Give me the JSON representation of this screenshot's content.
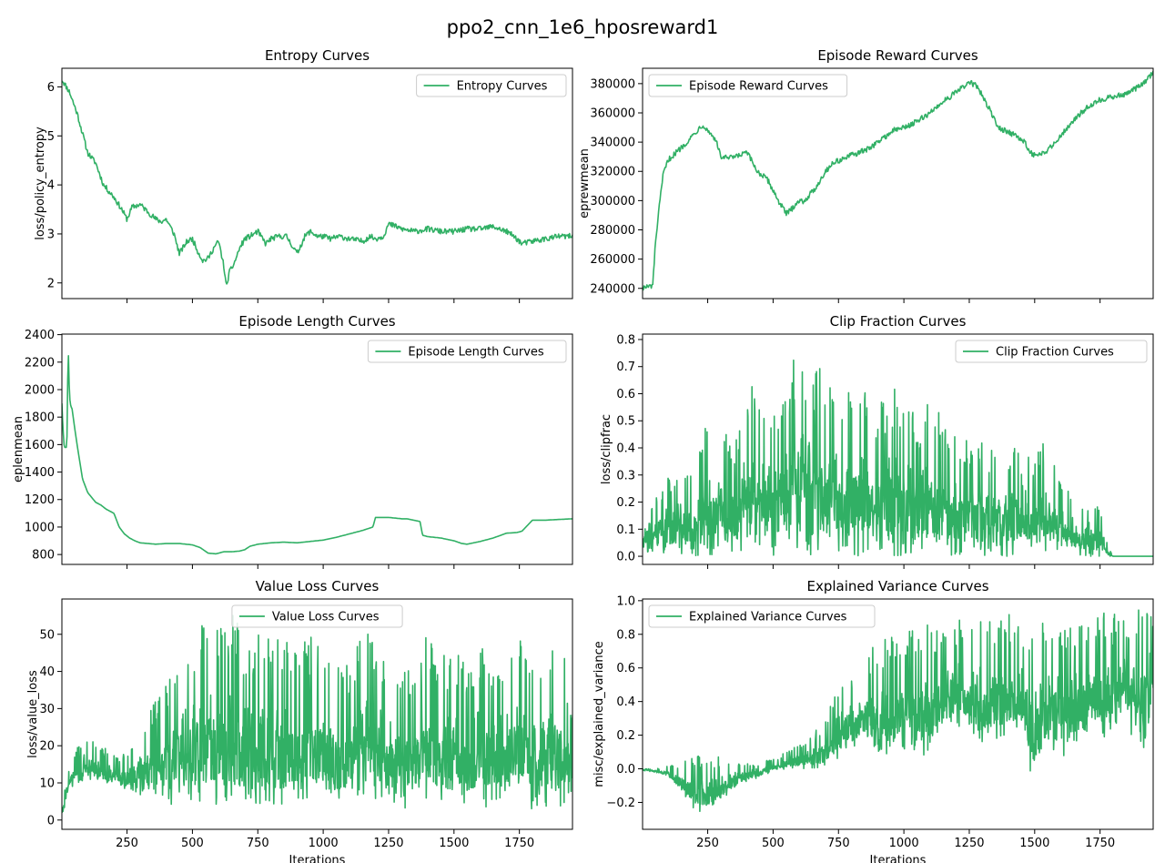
{
  "figure": {
    "title": "ppo2_cnn_1e6_hposreward1",
    "line_color": "#31b065"
  },
  "chart_data": [
    {
      "type": "line",
      "title": "Entropy Curves",
      "xlabel": "",
      "ylabel": "loss/policy_entropy",
      "xlim": [
        1,
        1953
      ],
      "ylim": [
        1.68,
        6.38
      ],
      "xticks": [
        250,
        500,
        750,
        1000,
        1250,
        1500,
        1750
      ],
      "xtick_labels": [],
      "yticks": [
        2,
        3,
        4,
        5,
        6
      ],
      "ytick_labels": [
        "2",
        "3",
        "4",
        "5",
        "6"
      ],
      "legend": "upper right",
      "series": [
        {
          "name": "Entropy Curves",
          "x": [
            1,
            30,
            60,
            100,
            130,
            160,
            200,
            230,
            250,
            270,
            300,
            330,
            360,
            380,
            400,
            430,
            450,
            480,
            500,
            520,
            540,
            560,
            580,
            600,
            620,
            630,
            640,
            660,
            680,
            700,
            720,
            750,
            780,
            800,
            830,
            860,
            900,
            930,
            950,
            980,
            1000,
            1030,
            1060,
            1100,
            1150,
            1180,
            1200,
            1230,
            1250,
            1280,
            1300,
            1350,
            1400,
            1450,
            1500,
            1550,
            1600,
            1650,
            1700,
            1730,
            1760,
            1800,
            1850,
            1900,
            1953
          ],
          "y": [
            6.15,
            5.9,
            5.45,
            4.65,
            4.45,
            4.0,
            3.75,
            3.5,
            3.3,
            3.55,
            3.6,
            3.45,
            3.3,
            3.25,
            3.3,
            3.0,
            2.6,
            2.85,
            2.9,
            2.65,
            2.45,
            2.5,
            2.7,
            2.85,
            2.35,
            1.9,
            2.2,
            2.4,
            2.7,
            2.9,
            2.95,
            3.05,
            2.8,
            2.9,
            2.95,
            2.95,
            2.6,
            2.95,
            3.05,
            2.95,
            2.95,
            2.9,
            2.95,
            2.9,
            2.85,
            2.95,
            2.9,
            2.95,
            3.2,
            3.15,
            3.1,
            3.05,
            3.1,
            3.05,
            3.05,
            3.1,
            3.1,
            3.15,
            3.05,
            2.95,
            2.8,
            2.85,
            2.9,
            2.95,
            2.95
          ]
        }
      ]
    },
    {
      "type": "line",
      "title": "Episode Reward Curves",
      "xlabel": "",
      "ylabel": "eprewmean",
      "xlim": [
        1,
        1953
      ],
      "ylim": [
        233000,
        390500
      ],
      "xticks": [
        250,
        500,
        750,
        1000,
        1250,
        1500,
        1750
      ],
      "xtick_labels": [],
      "yticks": [
        240000,
        260000,
        280000,
        300000,
        320000,
        340000,
        360000,
        380000
      ],
      "ytick_labels": [
        "240000",
        "260000",
        "280000",
        "300000",
        "320000",
        "340000",
        "360000",
        "380000"
      ],
      "legend": "upper left",
      "series": [
        {
          "name": "Episode Reward Curves",
          "x": [
            1,
            25,
            40,
            50,
            60,
            80,
            100,
            130,
            170,
            210,
            230,
            250,
            280,
            300,
            330,
            360,
            400,
            440,
            480,
            520,
            550,
            570,
            590,
            620,
            660,
            700,
            730,
            760,
            800,
            860,
            900,
            960,
            1000,
            1050,
            1100,
            1150,
            1200,
            1250,
            1280,
            1320,
            1360,
            1400,
            1430,
            1460,
            1490,
            1510,
            1530,
            1550,
            1580,
            1600,
            1650,
            1700,
            1750,
            1800,
            1850,
            1900,
            1953
          ],
          "y": [
            240500,
            241000,
            242000,
            270000,
            288000,
            318000,
            328000,
            333000,
            340000,
            348000,
            352000,
            348000,
            342000,
            330000,
            329000,
            330000,
            333000,
            320000,
            314000,
            300000,
            291000,
            294000,
            299000,
            300000,
            308000,
            320000,
            326000,
            328000,
            331000,
            335000,
            340000,
            348000,
            350000,
            354000,
            360000,
            368000,
            374000,
            381000,
            378000,
            365000,
            350000,
            347000,
            344000,
            340000,
            332000,
            330000,
            332000,
            335000,
            340000,
            345000,
            355000,
            364000,
            369000,
            371000,
            373000,
            378000,
            387000
          ]
        }
      ]
    },
    {
      "type": "line",
      "title": "Episode Length Curves",
      "xlabel": "",
      "ylabel": "eplenmean",
      "xlim": [
        1,
        1953
      ],
      "ylim": [
        728,
        2404
      ],
      "xticks": [
        250,
        500,
        750,
        1000,
        1250,
        1500,
        1750
      ],
      "xtick_labels": [],
      "yticks": [
        800,
        1000,
        1200,
        1400,
        1600,
        1800,
        2000,
        2200,
        2400
      ],
      "ytick_labels": [
        "800",
        "1000",
        "1200",
        "1400",
        "1600",
        "1800",
        "2000",
        "2200",
        "2400"
      ],
      "legend": "upper right",
      "series": [
        {
          "name": "Episode Length Curves",
          "x": [
            1,
            5,
            10,
            15,
            20,
            25,
            30,
            35,
            40,
            50,
            60,
            80,
            100,
            130,
            150,
            170,
            200,
            220,
            240,
            260,
            280,
            300,
            330,
            360,
            400,
            450,
            500,
            530,
            560,
            590,
            620,
            650,
            680,
            700,
            720,
            750,
            800,
            850,
            900,
            950,
            1000,
            1050,
            1100,
            1150,
            1190,
            1200,
            1250,
            1300,
            1320,
            1370,
            1380,
            1400,
            1450,
            1500,
            1530,
            1550,
            1600,
            1650,
            1700,
            1740,
            1760,
            1800,
            1850,
            1900,
            1953
          ],
          "y": [
            1900,
            1720,
            1580,
            1580,
            1580,
            2330,
            1950,
            1880,
            1860,
            1720,
            1590,
            1350,
            1250,
            1180,
            1160,
            1130,
            1100,
            1000,
            950,
            920,
            900,
            885,
            880,
            875,
            880,
            880,
            870,
            850,
            810,
            805,
            820,
            820,
            825,
            835,
            860,
            875,
            885,
            890,
            885,
            895,
            905,
            925,
            950,
            975,
            1000,
            1070,
            1070,
            1060,
            1060,
            1040,
            940,
            930,
            920,
            900,
            880,
            875,
            895,
            920,
            955,
            960,
            970,
            1050,
            1050,
            1055,
            1060
          ]
        }
      ]
    },
    {
      "type": "line",
      "title": "Clip Fraction Curves",
      "xlabel": "",
      "ylabel": "loss/clipfrac",
      "xlim": [
        1,
        1953
      ],
      "ylim": [
        -0.03,
        0.82
      ],
      "xticks": [
        250,
        500,
        750,
        1000,
        1250,
        1500,
        1750
      ],
      "xtick_labels": [],
      "yticks": [
        0.0,
        0.1,
        0.2,
        0.3,
        0.4,
        0.5,
        0.6,
        0.7,
        0.8
      ],
      "ytick_labels": [
        "0.0",
        "0.1",
        "0.2",
        "0.3",
        "0.4",
        "0.5",
        "0.6",
        "0.7",
        "0.8"
      ],
      "legend": "upper right",
      "series": [
        {
          "name": "Clip Fraction Curves",
          "envelope_x": [
            1,
            50,
            100,
            150,
            200,
            250,
            300,
            350,
            400,
            450,
            500,
            550,
            600,
            650,
            700,
            750,
            800,
            850,
            900,
            950,
            1000,
            1050,
            1100,
            1150,
            1200,
            1250,
            1300,
            1350,
            1400,
            1450,
            1500,
            1550,
            1600,
            1650,
            1700,
            1750,
            1780,
            1800,
            1850,
            1900,
            1953
          ],
          "envelope_high": [
            0.15,
            0.25,
            0.3,
            0.33,
            0.35,
            0.52,
            0.55,
            0.4,
            0.65,
            0.6,
            0.58,
            0.66,
            0.78,
            0.72,
            0.68,
            0.62,
            0.6,
            0.68,
            0.55,
            0.62,
            0.63,
            0.5,
            0.58,
            0.53,
            0.45,
            0.44,
            0.42,
            0.4,
            0.38,
            0.52,
            0.35,
            0.48,
            0.28,
            0.25,
            0.22,
            0.2,
            0.04,
            0.0,
            0.0,
            0.0,
            0.0
          ],
          "envelope_low": [
            0.01,
            0.01,
            0.0,
            0.0,
            0.0,
            0.0,
            0.0,
            0.0,
            0.0,
            0.0,
            0.0,
            0.0,
            0.0,
            0.0,
            0.0,
            0.0,
            0.0,
            0.0,
            0.0,
            0.0,
            0.0,
            0.0,
            0.0,
            0.0,
            0.0,
            0.0,
            0.0,
            0.0,
            0.0,
            0.0,
            0.0,
            0.0,
            0.0,
            0.0,
            0.0,
            0.0,
            0.0,
            0.0,
            0.0,
            0.0,
            0.0
          ]
        }
      ]
    },
    {
      "type": "line",
      "title": "Value Loss Curves",
      "xlabel": "Iterations",
      "ylabel": "loss/value_loss",
      "xlim": [
        1,
        1953
      ],
      "ylim": [
        -2.5,
        59.5
      ],
      "xticks": [
        250,
        500,
        750,
        1000,
        1250,
        1500,
        1750
      ],
      "xtick_labels": [
        "250",
        "500",
        "750",
        "1000",
        "1250",
        "1500",
        "1750"
      ],
      "yticks": [
        0,
        10,
        20,
        30,
        40,
        50
      ],
      "ytick_labels": [
        "0",
        "10",
        "20",
        "30",
        "40",
        "50"
      ],
      "legend": "upper center",
      "series": [
        {
          "name": "Value Loss Curves",
          "envelope_x": [
            1,
            30,
            60,
            100,
            150,
            200,
            250,
            300,
            350,
            400,
            450,
            500,
            550,
            600,
            650,
            700,
            750,
            800,
            850,
            900,
            950,
            1000,
            1050,
            1100,
            1150,
            1200,
            1250,
            1300,
            1350,
            1400,
            1450,
            1500,
            1550,
            1600,
            1650,
            1700,
            1750,
            1800,
            1850,
            1900,
            1953
          ],
          "envelope_high": [
            5,
            15,
            20,
            24,
            20,
            18,
            18,
            25,
            32,
            38,
            45,
            50,
            56,
            52,
            57,
            50,
            52,
            48,
            50,
            45,
            50,
            46,
            43,
            42,
            55,
            48,
            46,
            40,
            45,
            50,
            44,
            46,
            42,
            48,
            45,
            49,
            53,
            44,
            50,
            52,
            32
          ],
          "envelope_low": [
            1,
            8,
            10,
            10,
            10,
            9,
            8,
            6,
            5,
            4,
            4,
            3,
            3,
            3,
            3,
            3,
            3,
            3,
            3,
            3,
            3,
            3,
            3,
            3,
            3,
            4,
            3,
            3,
            3,
            3,
            3,
            3,
            3,
            3,
            3,
            3,
            3,
            3,
            3,
            3,
            3
          ]
        }
      ]
    },
    {
      "type": "line",
      "title": "Explained Variance Curves",
      "xlabel": "Iterations",
      "ylabel": "misc/explained_variance",
      "xlim": [
        1,
        1953
      ],
      "ylim": [
        -0.36,
        1.01
      ],
      "xticks": [
        250,
        500,
        750,
        1000,
        1250,
        1500,
        1750
      ],
      "xtick_labels": [
        "250",
        "500",
        "750",
        "1000",
        "1250",
        "1500",
        "1750"
      ],
      "yticks": [
        -0.2,
        0.0,
        0.2,
        0.4,
        0.6,
        0.8,
        1.0
      ],
      "ytick_labels": [
        "−0.2",
        "0.0",
        "0.2",
        "0.4",
        "0.6",
        "0.8",
        "1.0"
      ],
      "legend": "upper left",
      "series": [
        {
          "name": "Explained Variance Curves",
          "envelope_x": [
            1,
            50,
            100,
            150,
            200,
            250,
            300,
            350,
            400,
            450,
            500,
            550,
            600,
            650,
            700,
            750,
            800,
            850,
            900,
            950,
            1000,
            1050,
            1100,
            1150,
            1200,
            1250,
            1300,
            1350,
            1400,
            1450,
            1500,
            1550,
            1600,
            1650,
            1700,
            1750,
            1800,
            1850,
            1900,
            1953
          ],
          "envelope_high": [
            0.0,
            0.0,
            0.02,
            0.05,
            0.08,
            0.08,
            0.07,
            0.05,
            0.04,
            0.04,
            0.06,
            0.1,
            0.15,
            0.2,
            0.3,
            0.5,
            0.6,
            0.68,
            0.75,
            0.8,
            0.85,
            0.85,
            0.88,
            0.86,
            0.88,
            0.9,
            0.9,
            0.88,
            0.92,
            0.9,
            0.88,
            0.92,
            0.9,
            0.9,
            0.92,
            0.95,
            0.92,
            0.93,
            0.95,
            0.95
          ],
          "envelope_low": [
            -0.01,
            -0.02,
            -0.05,
            -0.15,
            -0.25,
            -0.26,
            -0.2,
            -0.12,
            -0.08,
            -0.05,
            -0.02,
            0.0,
            0.0,
            0.0,
            0.0,
            0.05,
            0.1,
            0.15,
            0.0,
            0.05,
            0.1,
            0.1,
            0.05,
            0.2,
            0.25,
            0.2,
            0.15,
            0.15,
            0.2,
            0.2,
            -0.15,
            0.1,
            0.05,
            0.1,
            0.1,
            0.2,
            0.1,
            0.3,
            0.0,
            0.4
          ]
        }
      ]
    }
  ]
}
